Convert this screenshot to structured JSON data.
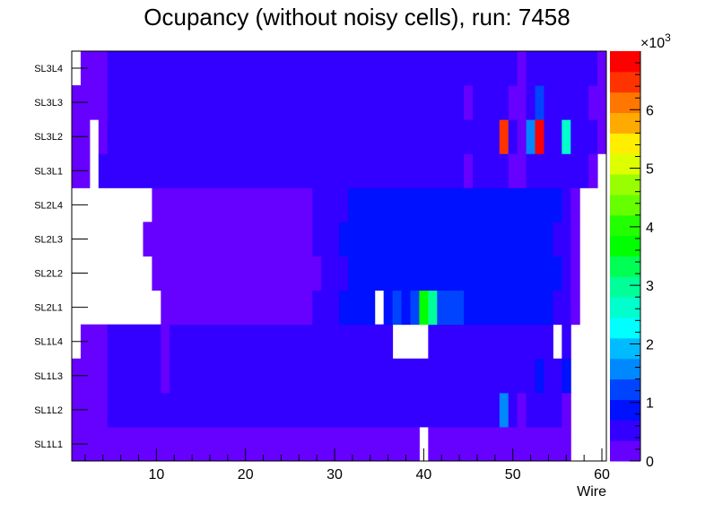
{
  "chart_data": {
    "type": "heatmap",
    "title": "Ocupancy (without noisy cells), run: 7458",
    "xlabel": "Wire",
    "ylabel": "",
    "xlim": [
      0.5,
      60.5
    ],
    "x_ticks": [
      10,
      20,
      30,
      40,
      50,
      60
    ],
    "y_categories": [
      "SL1L1",
      "SL1L2",
      "SL1L3",
      "SL1L4",
      "SL2L1",
      "SL2L2",
      "SL2L3",
      "SL2L4",
      "SL3L1",
      "SL3L2",
      "SL3L3",
      "SL3L4"
    ],
    "z_range": [
      0,
      7000
    ],
    "z_multiplier_label": "×10",
    "z_multiplier_exp": "3",
    "z_ticks": [
      "0",
      "1",
      "2",
      "3",
      "4",
      "5",
      "6"
    ],
    "palette": [
      "#6600ff",
      "#3300ff",
      "#0011ff",
      "#0044ff",
      "#0088ff",
      "#00bbff",
      "#00ffff",
      "#00ffcc",
      "#00ff99",
      "#00ff55",
      "#00ff00",
      "#22ff00",
      "#66ff00",
      "#99ff00",
      "#ddff00",
      "#ffee00",
      "#ffaa00",
      "#ff7700",
      "#ff3300",
      "#ff0000"
    ],
    "rows_run_length_note": "each row: [value, number_of_wires] runs from wire 1 to 60; null = empty",
    "rows": {
      "SL1L1": [
        [
          200,
          39
        ],
        [
          null,
          1
        ],
        [
          200,
          16
        ],
        [
          null,
          4
        ]
      ],
      "SL1L2": [
        [
          200,
          4
        ],
        [
          500,
          44
        ],
        [
          1500,
          1
        ],
        [
          500,
          1
        ],
        [
          200,
          1
        ],
        [
          500,
          4
        ],
        [
          200,
          1
        ],
        [
          null,
          4
        ]
      ],
      "SL1L3": [
        [
          200,
          4
        ],
        [
          500,
          6
        ],
        [
          200,
          1
        ],
        [
          500,
          41
        ],
        [
          900,
          1
        ],
        [
          500,
          2
        ],
        [
          900,
          1
        ],
        [
          null,
          4
        ]
      ],
      "SL1L4": [
        [
          null,
          1
        ],
        [
          200,
          3
        ],
        [
          500,
          6
        ],
        [
          200,
          1
        ],
        [
          500,
          25
        ],
        [
          null,
          4
        ],
        [
          500,
          14
        ],
        [
          null,
          1
        ],
        [
          500,
          1
        ],
        [
          null,
          4
        ]
      ],
      "SL2L1": [
        [
          null,
          10
        ],
        [
          200,
          17
        ],
        [
          500,
          3
        ],
        [
          900,
          4
        ],
        [
          null,
          1
        ],
        [
          900,
          1
        ],
        [
          1200,
          1
        ],
        [
          900,
          1
        ],
        [
          1200,
          1
        ],
        [
          3600,
          1
        ],
        [
          3100,
          1
        ],
        [
          1200,
          3
        ],
        [
          900,
          10
        ],
        [
          500,
          2
        ],
        [
          200,
          1
        ],
        [
          null,
          3
        ]
      ],
      "SL2L2": [
        [
          null,
          9
        ],
        [
          200,
          19
        ],
        [
          500,
          3
        ],
        [
          900,
          24
        ],
        [
          500,
          1
        ],
        [
          200,
          1
        ],
        [
          null,
          3
        ]
      ],
      "SL2L3": [
        [
          null,
          8
        ],
        [
          200,
          19
        ],
        [
          500,
          3
        ],
        [
          900,
          24
        ],
        [
          500,
          2
        ],
        [
          200,
          1
        ],
        [
          null,
          3
        ]
      ],
      "SL2L4": [
        [
          null,
          9
        ],
        [
          200,
          18
        ],
        [
          500,
          4
        ],
        [
          900,
          24
        ],
        [
          500,
          1
        ],
        [
          200,
          1
        ],
        [
          null,
          3
        ]
      ],
      "SL3L1": [
        [
          200,
          2
        ],
        [
          null,
          1
        ],
        [
          500,
          41
        ],
        [
          200,
          1
        ],
        [
          500,
          4
        ],
        [
          200,
          2
        ],
        [
          500,
          7
        ],
        [
          200,
          1
        ],
        [
          null,
          1
        ]
      ],
      "SL3L2": [
        [
          200,
          2
        ],
        [
          null,
          1
        ],
        [
          200,
          1
        ],
        [
          500,
          44
        ],
        [
          6500,
          1
        ],
        [
          500,
          1
        ],
        [
          200,
          1
        ],
        [
          1600,
          1
        ],
        [
          6900,
          1
        ],
        [
          500,
          2
        ],
        [
          2600,
          1
        ],
        [
          500,
          3
        ],
        [
          200,
          1
        ]
      ],
      "SL3L3": [
        [
          200,
          4
        ],
        [
          500,
          40
        ],
        [
          200,
          1
        ],
        [
          500,
          4
        ],
        [
          200,
          2
        ],
        [
          500,
          1
        ],
        [
          1200,
          1
        ],
        [
          500,
          5
        ],
        [
          200,
          2
        ]
      ],
      "SL3L4": [
        [
          null,
          1
        ],
        [
          200,
          3
        ],
        [
          500,
          46
        ],
        [
          200,
          1
        ],
        [
          500,
          8
        ],
        [
          200,
          1
        ]
      ]
    }
  }
}
